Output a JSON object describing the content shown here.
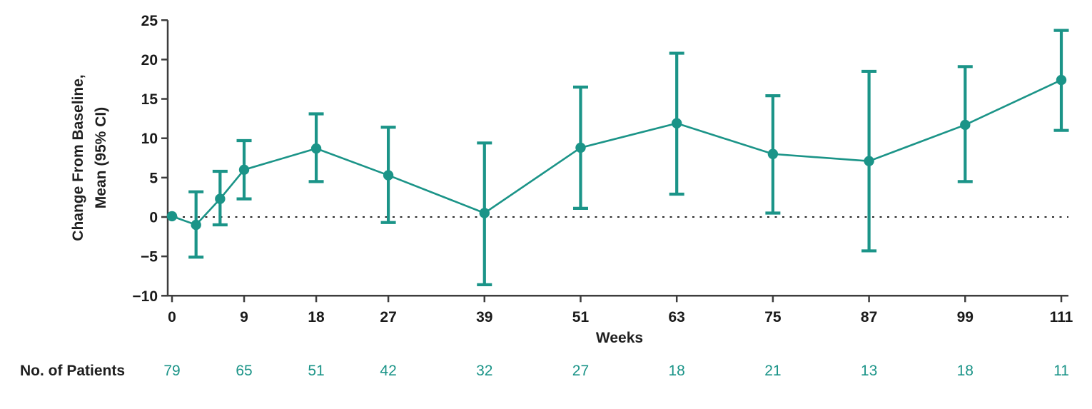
{
  "figure": {
    "y_axis_label_line1": "Change From Baseline,",
    "y_axis_label_line2": "Mean (95% CI)",
    "x_axis_label": "Weeks",
    "patients_row_label": "No. of Patients"
  },
  "colors": {
    "series": "#1B9488",
    "axis": "#3d3d3d",
    "text": "#1a1a1a",
    "zero_line": "#2a2a2a"
  },
  "chart_data": {
    "type": "line",
    "title": "",
    "xlabel": "Weeks",
    "ylabel": "Change From Baseline, Mean (95% CI)",
    "xlim": [
      0,
      111
    ],
    "ylim": [
      -10,
      25
    ],
    "x_ticks": [
      0,
      9,
      18,
      27,
      39,
      51,
      63,
      75,
      87,
      99,
      111
    ],
    "y_ticks": [
      25,
      20,
      15,
      10,
      5,
      0,
      -5,
      -10
    ],
    "grid": false,
    "legend": "none",
    "zero_reference_line": true,
    "series": [
      {
        "name": "Change from baseline, mean (95% CI)",
        "x": [
          0,
          3,
          6,
          9,
          18,
          27,
          39,
          51,
          63,
          75,
          87,
          99,
          111
        ],
        "mean": [
          0.1,
          -1.0,
          2.3,
          6.0,
          8.7,
          5.3,
          0.5,
          8.8,
          11.9,
          8.0,
          7.1,
          11.7,
          17.4
        ],
        "ci_low": [
          null,
          -5.1,
          -1.0,
          2.3,
          4.5,
          -0.7,
          -8.6,
          1.1,
          2.9,
          0.5,
          -4.3,
          4.5,
          11.0
        ],
        "ci_high": [
          null,
          3.2,
          5.8,
          9.7,
          13.1,
          11.4,
          9.4,
          16.5,
          20.8,
          15.4,
          18.5,
          19.1,
          23.7
        ]
      }
    ],
    "no_of_patients": {
      "label": "No. of Patients",
      "weeks": [
        0,
        9,
        18,
        27,
        39,
        51,
        63,
        75,
        87,
        99,
        111
      ],
      "counts": [
        79,
        65,
        51,
        42,
        32,
        27,
        18,
        21,
        13,
        18,
        11
      ]
    }
  }
}
